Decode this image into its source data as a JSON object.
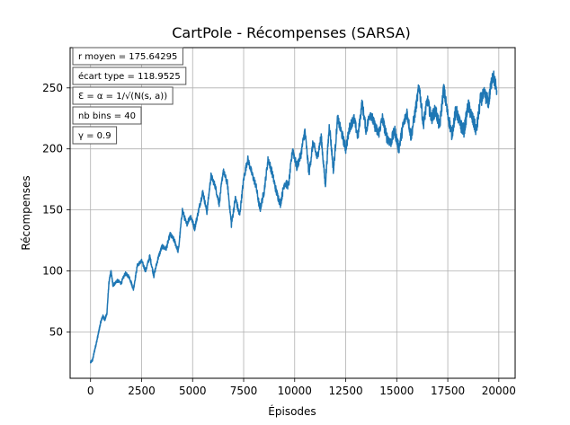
{
  "chart_data": {
    "type": "line",
    "title": "CartPole - Récompenses (SARSA)",
    "xlabel": "Épisodes",
    "ylabel": "Récompenses",
    "xlim": [
      -1000,
      20800
    ],
    "ylim": [
      12,
      283
    ],
    "grid": true,
    "x_ticks": [
      {
        "value": 0,
        "label": "0"
      },
      {
        "value": 2500,
        "label": "2500"
      },
      {
        "value": 5000,
        "label": "5000"
      },
      {
        "value": 7500,
        "label": "7500"
      },
      {
        "value": 10000,
        "label": "10000"
      },
      {
        "value": 12500,
        "label": "12500"
      },
      {
        "value": 15000,
        "label": "15000"
      },
      {
        "value": 17500,
        "label": "17500"
      },
      {
        "value": 20000,
        "label": "20000"
      }
    ],
    "y_ticks": [
      {
        "value": 50,
        "label": "50"
      },
      {
        "value": 100,
        "label": "100"
      },
      {
        "value": 150,
        "label": "150"
      },
      {
        "value": 200,
        "label": "200"
      },
      {
        "value": 250,
        "label": "250"
      }
    ],
    "annotations": [
      "r moyen = 175.64295",
      "écart type = 118.9525",
      "Ɛ = α = 1/√(N(s, a))",
      "nb bins = 40",
      "γ = 0.9"
    ],
    "series": [
      {
        "name": "récompenses",
        "color": "#1f77b4",
        "x": [
          0,
          100,
          200,
          300,
          400,
          500,
          600,
          700,
          800,
          900,
          1000,
          1100,
          1300,
          1500,
          1700,
          1900,
          2100,
          2300,
          2500,
          2700,
          2900,
          3100,
          3300,
          3500,
          3700,
          3900,
          4100,
          4300,
          4500,
          4700,
          4900,
          5100,
          5300,
          5500,
          5700,
          5900,
          6100,
          6300,
          6500,
          6700,
          6900,
          7100,
          7300,
          7500,
          7700,
          7900,
          8100,
          8300,
          8500,
          8700,
          8900,
          9100,
          9300,
          9500,
          9700,
          9900,
          10100,
          10300,
          10500,
          10700,
          10900,
          11100,
          11300,
          11500,
          11700,
          11900,
          12100,
          12300,
          12500,
          12700,
          12900,
          13100,
          13300,
          13500,
          13700,
          13900,
          14100,
          14300,
          14500,
          14700,
          14900,
          15100,
          15300,
          15500,
          15700,
          15900,
          16100,
          16300,
          16500,
          16700,
          16900,
          17100,
          17300,
          17500,
          17700,
          17900,
          18100,
          18300,
          18500,
          18700,
          18900,
          19100,
          19300,
          19500,
          19700,
          19900
        ],
        "values": [
          25,
          27,
          35,
          42,
          50,
          58,
          63,
          60,
          65,
          90,
          100,
          88,
          92,
          90,
          98,
          95,
          85,
          105,
          108,
          100,
          112,
          96,
          110,
          120,
          118,
          130,
          125,
          116,
          150,
          138,
          145,
          135,
          150,
          165,
          148,
          178,
          170,
          155,
          182,
          172,
          138,
          160,
          145,
          175,
          192,
          180,
          170,
          150,
          165,
          192,
          180,
          165,
          155,
          172,
          170,
          200,
          185,
          195,
          215,
          180,
          205,
          193,
          210,
          170,
          220,
          182,
          225,
          213,
          200,
          218,
          225,
          210,
          238,
          215,
          230,
          220,
          212,
          225,
          210,
          205,
          215,
          200,
          218,
          230,
          210,
          230,
          252,
          220,
          240,
          225,
          232,
          218,
          250,
          228,
          212,
          232,
          220,
          215,
          236,
          225,
          215,
          240,
          245,
          238,
          262,
          248
        ]
      }
    ]
  }
}
